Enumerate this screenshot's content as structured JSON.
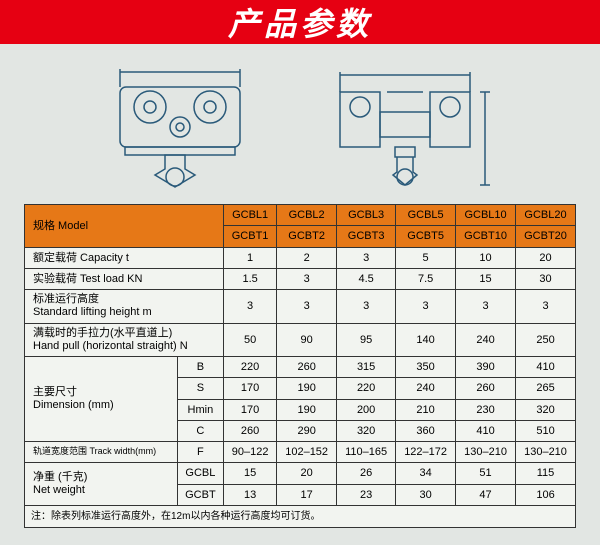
{
  "banner": {
    "title": "产品参数"
  },
  "table": {
    "header_label": "规格 Model",
    "models_top": [
      "GCBL1",
      "GCBL2",
      "GCBL3",
      "GCBL5",
      "GCBL10",
      "GCBL20"
    ],
    "models_bot": [
      "GCBT1",
      "GCBT2",
      "GCBT3",
      "GCBT5",
      "GCBT10",
      "GCBT20"
    ],
    "rows": [
      {
        "label": "额定载荷 Capacity  t",
        "vals": [
          "1",
          "2",
          "3",
          "5",
          "10",
          "20"
        ]
      },
      {
        "label": "实验载荷 Test load  KN",
        "vals": [
          "1.5",
          "3",
          "4.5",
          "7.5",
          "15",
          "30"
        ]
      },
      {
        "label": "标准运行高度\nStandard lifting height  m",
        "vals": [
          "3",
          "3",
          "3",
          "3",
          "3",
          "3"
        ]
      },
      {
        "label": "满载时的手拉力(水平直道上)\nHand pull (horizontal straight) N",
        "vals": [
          "50",
          "90",
          "95",
          "140",
          "240",
          "250"
        ]
      }
    ],
    "dimension": {
      "label": "主要尺寸\nDimension (mm)",
      "sub": [
        {
          "k": "B",
          "vals": [
            "220",
            "260",
            "315",
            "350",
            "390",
            "410"
          ]
        },
        {
          "k": "S",
          "vals": [
            "170",
            "190",
            "220",
            "240",
            "260",
            "265"
          ]
        },
        {
          "k": "Hmin",
          "vals": [
            "170",
            "190",
            "200",
            "210",
            "230",
            "320"
          ]
        },
        {
          "k": "C",
          "vals": [
            "260",
            "290",
            "320",
            "360",
            "410",
            "510"
          ]
        }
      ]
    },
    "track": {
      "label": "轨道宽度范围 Track width(mm)",
      "k": "F",
      "vals": [
        "90–122",
        "102–152",
        "110–165",
        "122–172",
        "130–210",
        "130–210"
      ]
    },
    "weight": {
      "label": "净重 (千克)\nNet weight",
      "sub": [
        {
          "k": "GCBL",
          "vals": [
            "15",
            "20",
            "26",
            "34",
            "51",
            "115"
          ]
        },
        {
          "k": "GCBT",
          "vals": [
            "13",
            "17",
            "23",
            "30",
            "47",
            "106"
          ]
        }
      ]
    },
    "note": "注：除表列标准运行高度外，在12m以内各种运行高度均可订货。"
  },
  "colors": {
    "banner": "#e60012",
    "header": "#e67817",
    "border": "#333",
    "bg": "#e2e6e3",
    "tablebg": "#f2f4f0",
    "diag": "#2a5a7a"
  }
}
